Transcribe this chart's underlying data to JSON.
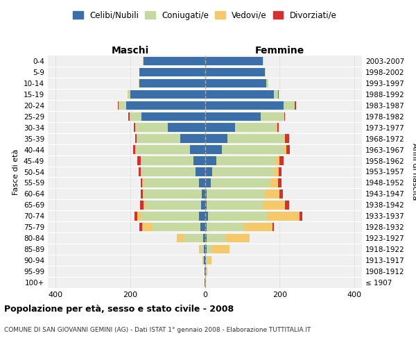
{
  "age_groups": [
    "100+",
    "95-99",
    "90-94",
    "85-89",
    "80-84",
    "75-79",
    "70-74",
    "65-69",
    "60-64",
    "55-59",
    "50-54",
    "45-49",
    "40-44",
    "35-39",
    "30-34",
    "25-29",
    "20-24",
    "15-19",
    "10-14",
    "5-9",
    "0-4"
  ],
  "birth_years": [
    "≤ 1907",
    "1908-1912",
    "1913-1917",
    "1918-1922",
    "1923-1927",
    "1928-1932",
    "1933-1937",
    "1938-1942",
    "1943-1947",
    "1948-1952",
    "1953-1957",
    "1958-1962",
    "1963-1967",
    "1968-1972",
    "1973-1977",
    "1978-1982",
    "1983-1987",
    "1988-1992",
    "1993-1997",
    "1998-2002",
    "2003-2007"
  ],
  "male_celibi": [
    1,
    1,
    2,
    2,
    5,
    12,
    15,
    10,
    8,
    15,
    25,
    30,
    40,
    65,
    100,
    170,
    210,
    200,
    175,
    175,
    165
  ],
  "male_coniugati": [
    0,
    0,
    3,
    8,
    50,
    130,
    155,
    150,
    155,
    150,
    145,
    140,
    145,
    115,
    85,
    30,
    20,
    5,
    2,
    1,
    1
  ],
  "male_vedovi": [
    0,
    0,
    1,
    5,
    20,
    25,
    10,
    5,
    3,
    2,
    2,
    2,
    2,
    2,
    2,
    2,
    1,
    1,
    0,
    0,
    0
  ],
  "male_divorziati": [
    0,
    0,
    0,
    0,
    0,
    8,
    8,
    8,
    5,
    5,
    5,
    8,
    5,
    5,
    3,
    2,
    1,
    0,
    0,
    0,
    0
  ],
  "female_celibi": [
    0,
    2,
    3,
    5,
    5,
    5,
    8,
    5,
    5,
    15,
    20,
    30,
    45,
    60,
    80,
    150,
    210,
    185,
    165,
    160,
    155
  ],
  "female_coniugati": [
    0,
    0,
    5,
    15,
    50,
    100,
    160,
    150,
    155,
    160,
    165,
    160,
    165,
    150,
    110,
    60,
    30,
    10,
    5,
    2,
    2
  ],
  "female_vedovi": [
    2,
    4,
    10,
    45,
    65,
    75,
    85,
    60,
    40,
    20,
    12,
    10,
    8,
    5,
    3,
    2,
    1,
    1,
    0,
    0,
    0
  ],
  "female_divorziati": [
    0,
    0,
    0,
    0,
    0,
    5,
    8,
    10,
    8,
    10,
    8,
    10,
    10,
    10,
    5,
    3,
    2,
    1,
    0,
    0,
    0
  ],
  "color_celibi": "#3a6fa8",
  "color_coniugati": "#c5d9a0",
  "color_vedovi": "#f5c96a",
  "color_divorziati": "#d43030",
  "title_main": "Popolazione per età, sesso e stato civile - 2008",
  "title_sub": "COMUNE DI SAN GIOVANNI GEMINI (AG) - Dati ISTAT 1° gennaio 2008 - Elaborazione TUTTITALIA.IT",
  "xlabel_left": "Maschi",
  "xlabel_right": "Femmine",
  "ylabel_left": "Fasce di età",
  "ylabel_right": "Anni di nascita",
  "xlim": 420,
  "background_color": "#ffffff",
  "grid_color": "#cccccc",
  "legend_labels": [
    "Celibi/Nubili",
    "Coniugati/e",
    "Vedovi/e",
    "Divorziati/e"
  ]
}
